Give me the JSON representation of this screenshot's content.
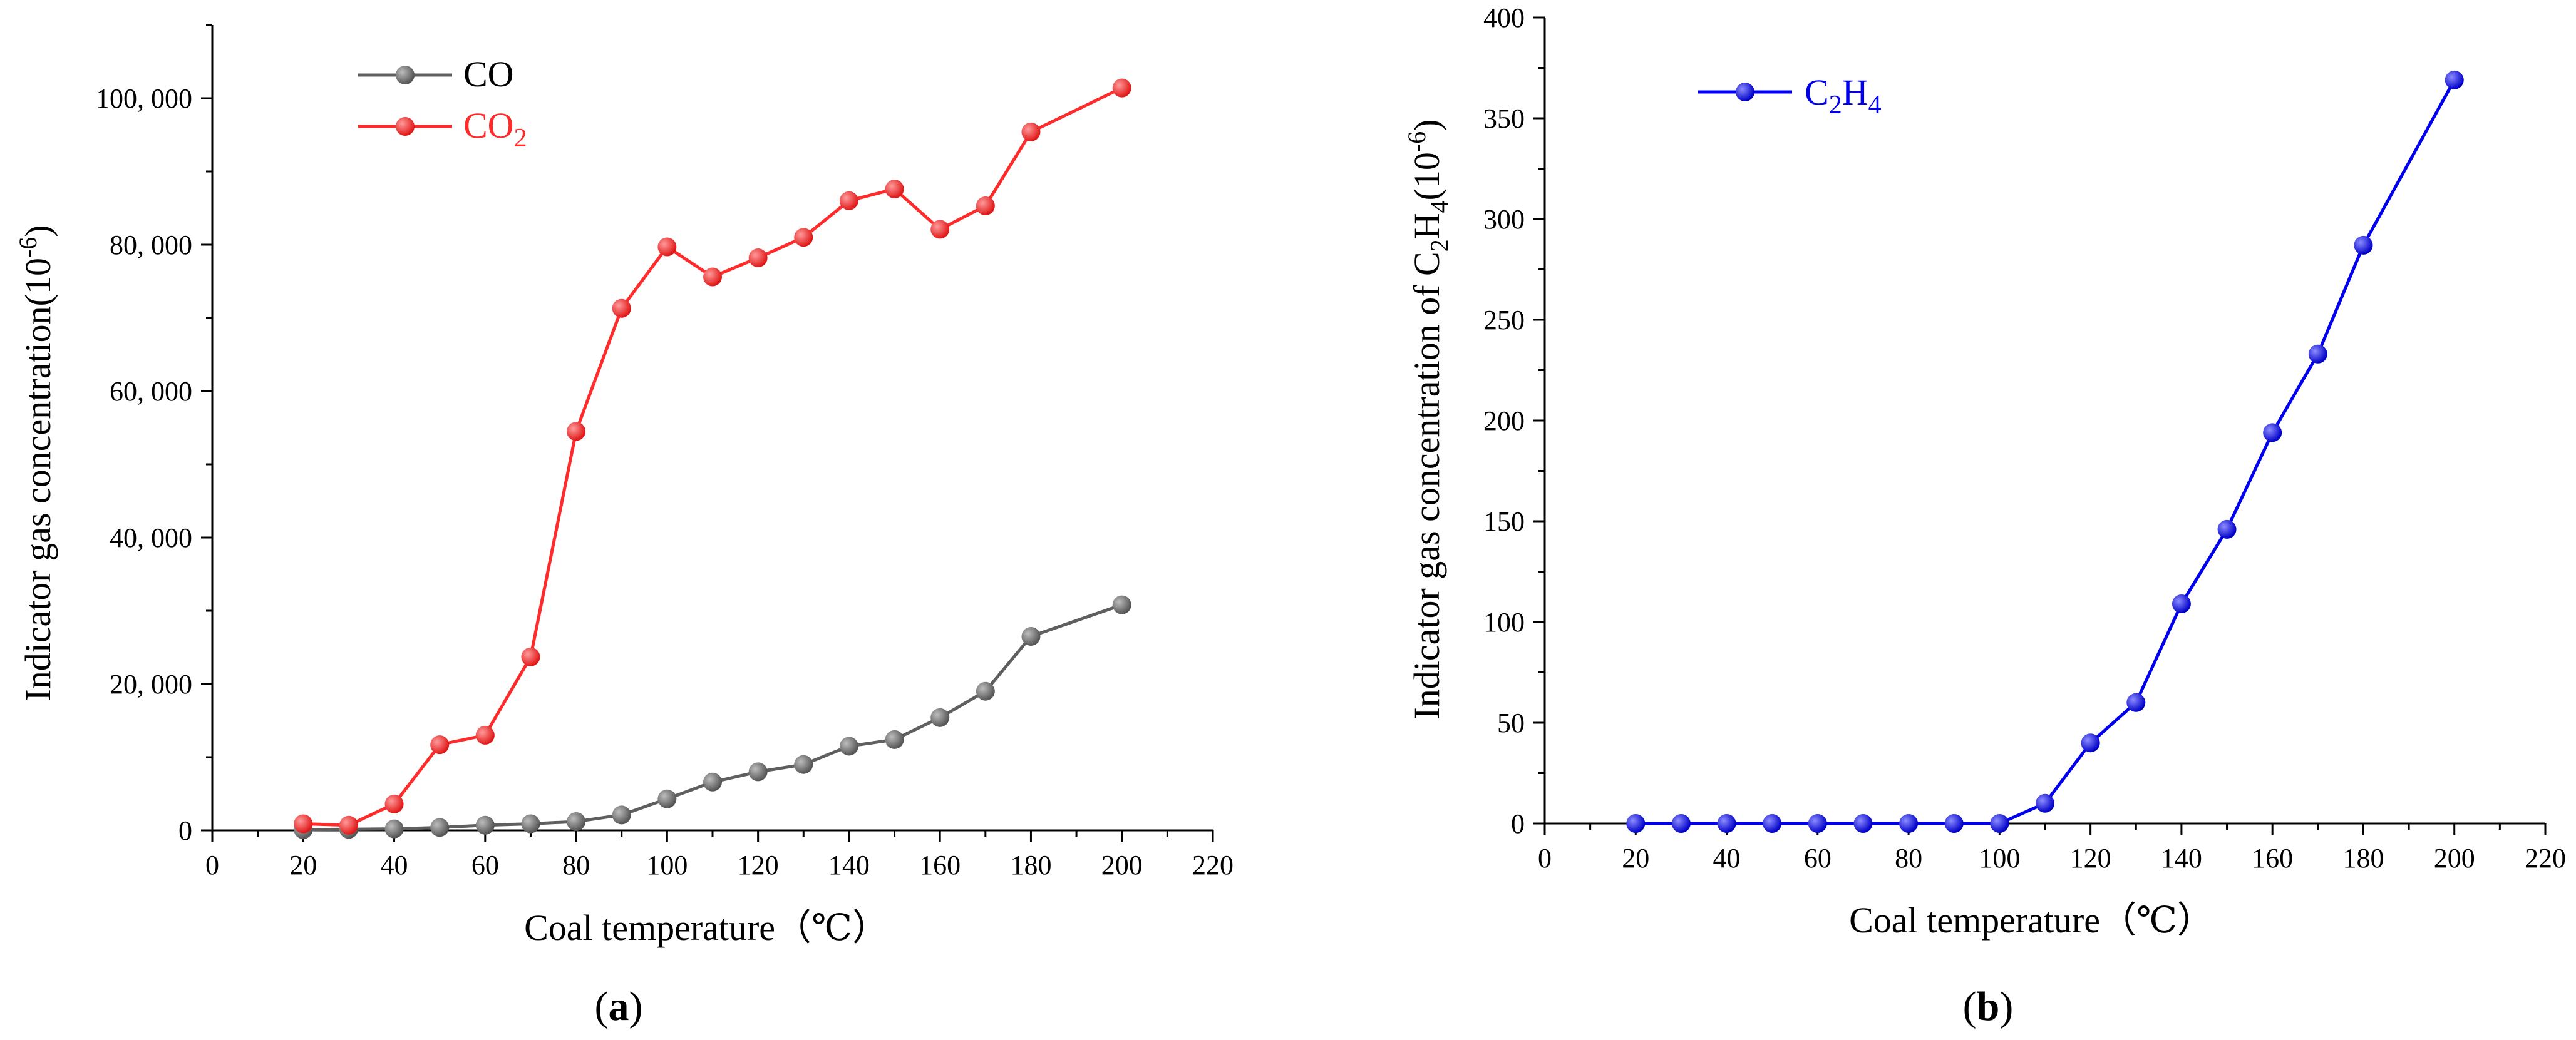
{
  "chart_data": [
    {
      "type": "line",
      "panel_label": "a",
      "title": "",
      "xlabel": "Coal temperature（℃）",
      "ylabel": "Indicator gas concentration(10",
      "ylabel_superscript": "-6",
      "ylabel_tail": ")",
      "x_ticks": [
        0,
        20,
        40,
        60,
        80,
        100,
        120,
        140,
        160,
        180,
        200,
        220
      ],
      "y_ticks": [
        0,
        20000,
        40000,
        60000,
        80000,
        100000
      ],
      "y_tick_labels": [
        "0",
        "20, 000",
        "40, 000",
        "60, 000",
        "80, 000",
        "100, 000"
      ],
      "xlim": [
        0,
        220
      ],
      "ylim": [
        0,
        110000
      ],
      "legend_position": "top-left",
      "series": [
        {
          "name": "CO",
          "label_main": "CO",
          "label_sub": "",
          "color": "#5f5f5f",
          "marker_color": "#6e6e6e",
          "x": [
            20,
            30,
            40,
            50,
            60,
            70,
            80,
            90,
            100,
            110,
            120,
            130,
            140,
            150,
            160,
            170,
            180,
            200
          ],
          "values": [
            100,
            150,
            200,
            400,
            700,
            900,
            1200,
            2100,
            4300,
            6600,
            8000,
            9000,
            11500,
            12400,
            15400,
            19000,
            26500,
            30800
          ]
        },
        {
          "name": "CO2",
          "label_main": "CO",
          "label_sub": "2",
          "color": "#ff2a2a",
          "marker_color": "#ff2a2a",
          "x": [
            20,
            30,
            40,
            50,
            60,
            70,
            80,
            90,
            100,
            110,
            120,
            130,
            140,
            150,
            160,
            170,
            180,
            200
          ],
          "values": [
            900,
            700,
            3600,
            11700,
            13000,
            23700,
            54500,
            71300,
            79700,
            75600,
            78200,
            81000,
            86000,
            87600,
            82100,
            85300,
            95400,
            101400
          ]
        }
      ]
    },
    {
      "type": "line",
      "panel_label": "b",
      "title": "",
      "xlabel": "Coal temperature（℃）",
      "ylabel": "Indicator gas concentration of C",
      "ylabel_sub1": "2",
      "ylabel_mid": "H",
      "ylabel_sub2": "4",
      "ylabel_paren": "(10",
      "ylabel_superscript": "-6",
      "ylabel_tail": ")",
      "x_ticks": [
        0,
        20,
        40,
        60,
        80,
        100,
        120,
        140,
        160,
        180,
        200,
        220
      ],
      "y_ticks": [
        0,
        50,
        100,
        150,
        200,
        250,
        300,
        350,
        400
      ],
      "y_tick_labels": [
        "0",
        "50",
        "100",
        "150",
        "200",
        "250",
        "300",
        "350",
        "400"
      ],
      "xlim": [
        0,
        220
      ],
      "ylim": [
        0,
        400
      ],
      "legend_position": "top-left",
      "series": [
        {
          "name": "C2H4",
          "label_main": "C",
          "label_sub": "2",
          "label_main2": "H",
          "label_sub2": "4",
          "color": "#0000ee",
          "marker_color": "#1a1aff",
          "x": [
            20,
            30,
            40,
            50,
            60,
            70,
            80,
            90,
            100,
            110,
            120,
            130,
            140,
            150,
            160,
            170,
            180,
            200
          ],
          "values": [
            0,
            0,
            0,
            0,
            0,
            0,
            0,
            0,
            0,
            10,
            40,
            60,
            109,
            146,
            194,
            233,
            287,
            369
          ]
        }
      ]
    }
  ]
}
